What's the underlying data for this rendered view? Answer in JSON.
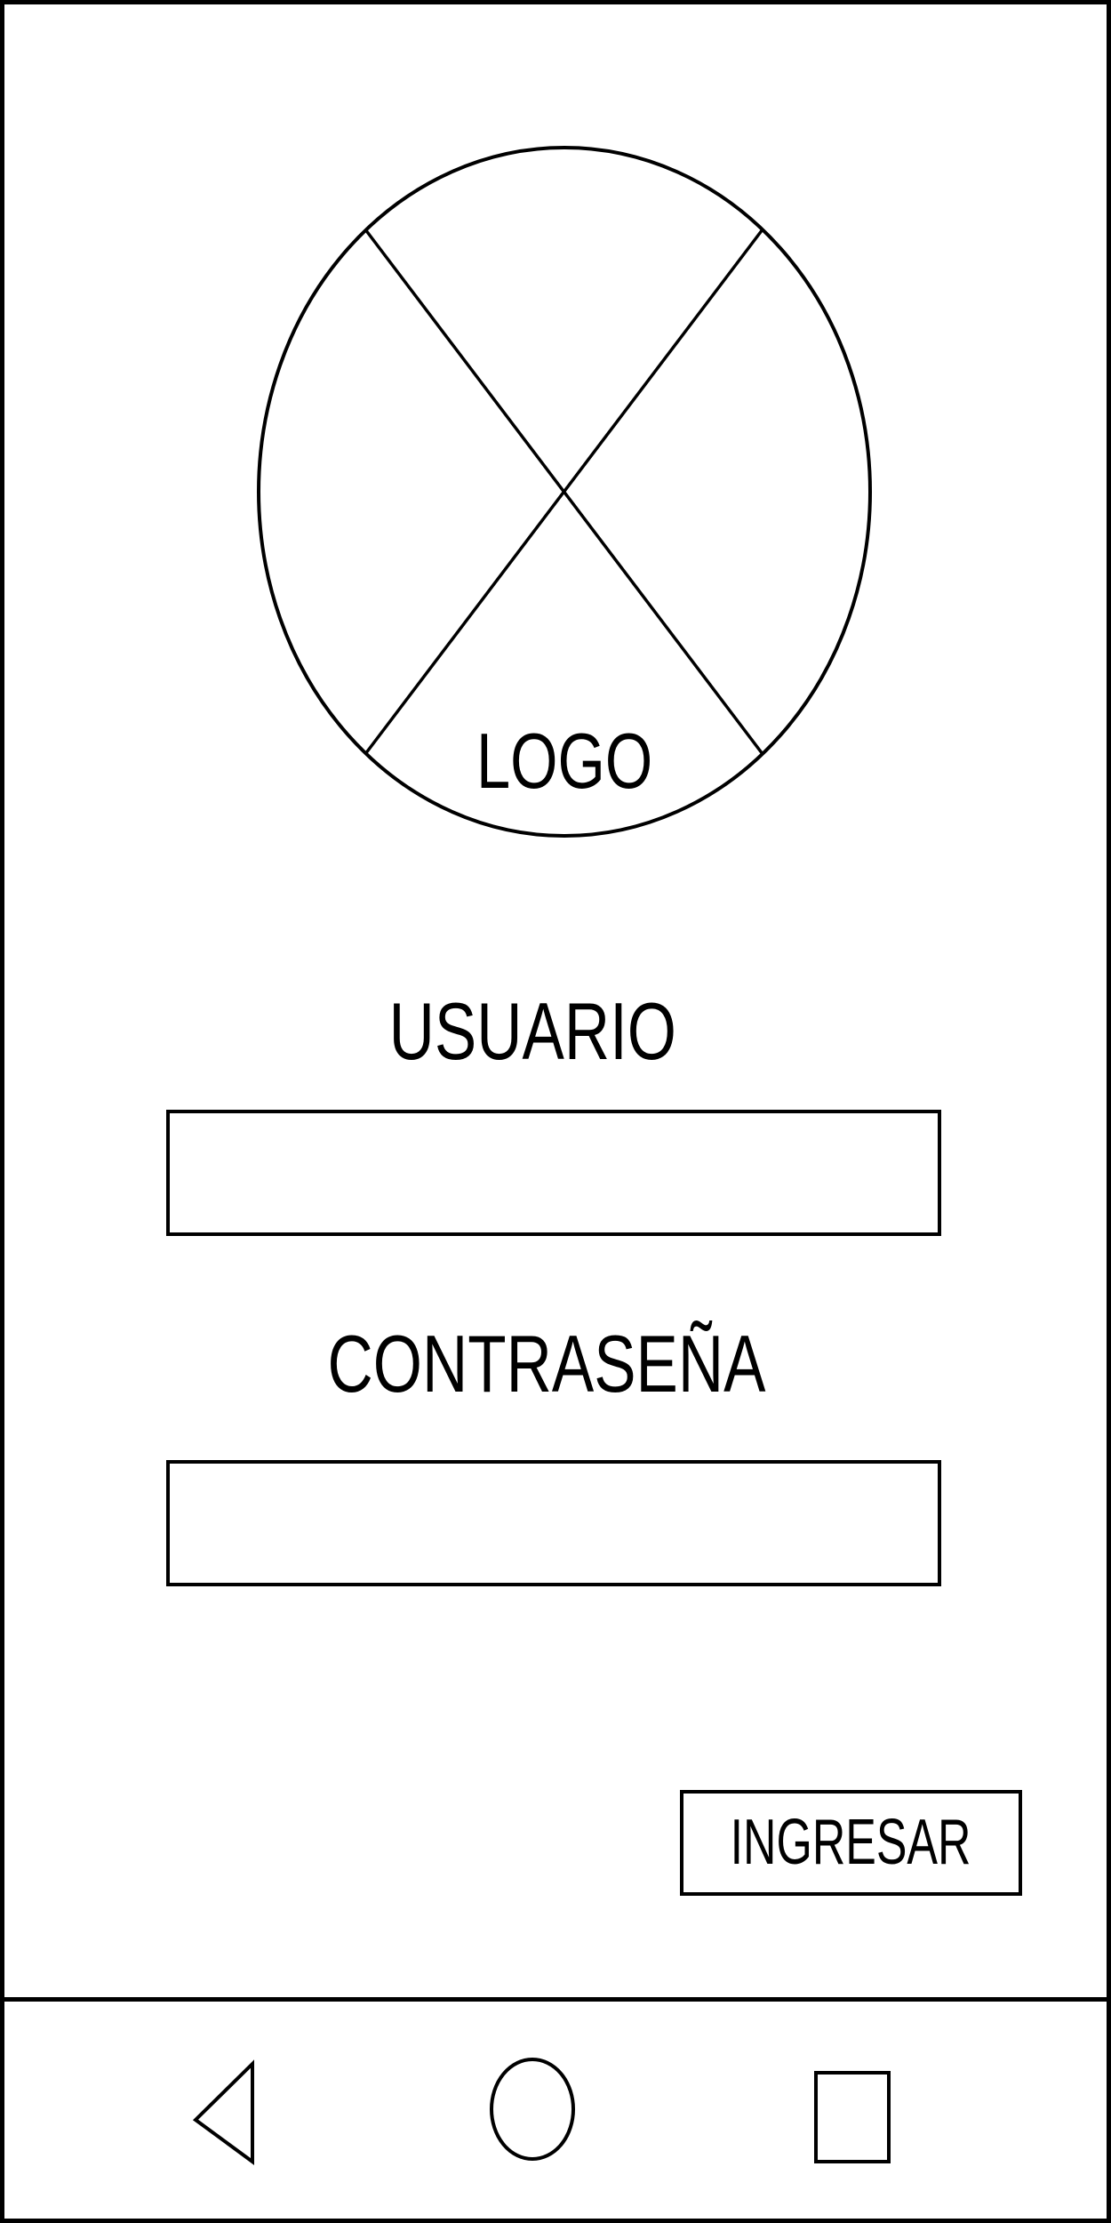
{
  "logo": {
    "label": "LOGO"
  },
  "form": {
    "username_label": "USUARIO",
    "password_label": "CONTRASEÑA",
    "submit_label": "INGRESAR"
  },
  "nav": {
    "back_icon": "back-triangle-icon",
    "home_icon": "home-circle-icon",
    "recents_icon": "recents-square-icon"
  },
  "colors": {
    "stroke": "#000000",
    "background": "#ffffff"
  }
}
